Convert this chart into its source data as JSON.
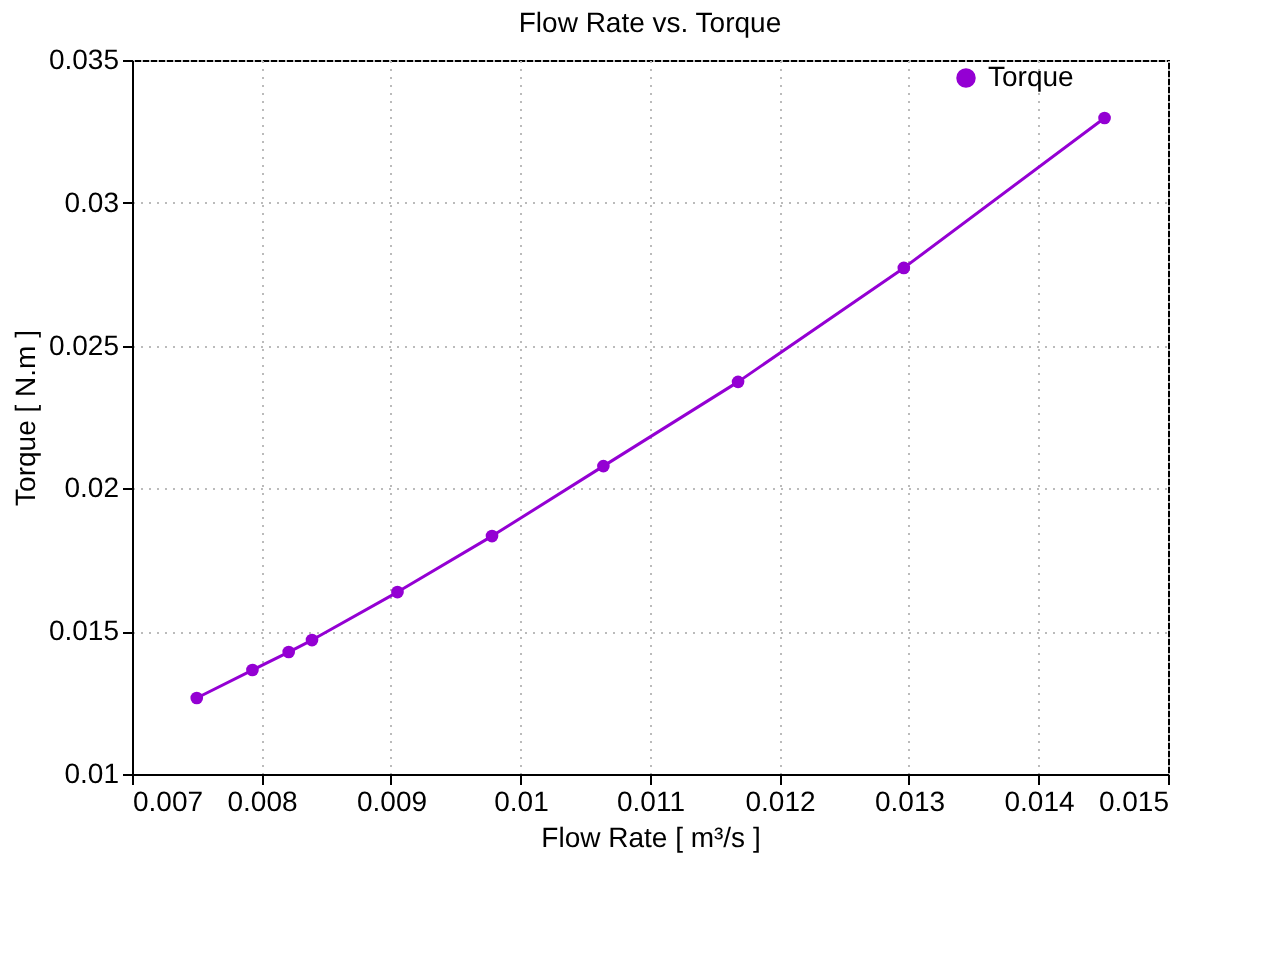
{
  "chart_data": {
    "type": "line",
    "title": "Flow Rate vs. Torque",
    "xlabel": "Flow Rate [ m³/s ]",
    "ylabel": "Torque [ N.m ]",
    "x": [
      0.0075,
      0.00793,
      0.00821,
      0.00839,
      0.00905,
      0.00978,
      0.01064,
      0.01168,
      0.01296,
      0.01451
    ],
    "series": [
      {
        "name": "Torque",
        "color": "#9400d3",
        "values": [
          0.01266,
          0.01364,
          0.01427,
          0.01469,
          0.01637,
          0.01833,
          0.02078,
          0.02373,
          0.02772,
          0.03297
        ]
      }
    ],
    "xlim": [
      0.007,
      0.015
    ],
    "xticks": [
      0.007,
      0.008,
      0.009,
      0.01,
      0.011,
      0.012,
      0.013,
      0.014,
      0.015
    ],
    "ylim": [
      0.01,
      0.035
    ],
    "yticks": [
      0.01,
      0.015,
      0.02,
      0.025,
      0.03,
      0.035
    ],
    "grid": true,
    "legend": "top right",
    "marker": "circle",
    "line_style": "solid"
  }
}
